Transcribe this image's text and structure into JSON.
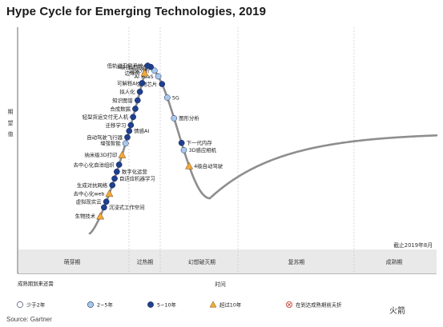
{
  "title": "Hype Cycle for Emerging Technologies, 2019",
  "source": "Source: Gartner",
  "watermark": "火箭",
  "as_of": "截止2019年8月",
  "colors": {
    "curve": "#8e8e8e",
    "less2": "#ffffff",
    "y2to5": "#a9c8ec",
    "y5to10": "#1f3f8f",
    "more10": "#f2a93b",
    "band": "#e9e9e9"
  },
  "chart_data": {
    "type": "scatter",
    "title": "Hype Cycle for Emerging Technologies, 2019",
    "xlabel": "时间",
    "ylabel": "期望值",
    "phases": [
      "萌芽期",
      "过热期",
      "幻想破灭期",
      "复苏期",
      "成熟期"
    ],
    "legend_title": "成熟期到来还需",
    "legend": [
      {
        "key": "less2",
        "label": "少于2年",
        "shape": "circle"
      },
      {
        "key": "y2to5",
        "label": "2~5年",
        "shape": "circle"
      },
      {
        "key": "y5to10",
        "label": "5~10年",
        "shape": "circle"
      },
      {
        "key": "more10",
        "label": "超过10年",
        "shape": "triangle"
      },
      {
        "key": "obsolete",
        "label": "在到达成熟期前夭折",
        "shape": "cross"
      }
    ],
    "points": [
      {
        "label": "生物芯片",
        "t": 0.48,
        "cat": "y5to10",
        "side": "left"
      },
      {
        "label": "AI PaaS",
        "t": 0.455,
        "cat": "y2to5",
        "side": "left"
      },
      {
        "label": "边缘分析",
        "t": 0.43,
        "cat": "y2to5",
        "side": "left"
      },
      {
        "label": "5G",
        "t": 0.515,
        "cat": "y2to5",
        "side": "right"
      },
      {
        "label": "S级自动驾驶",
        "t": 0.405,
        "cat": "y5to10",
        "side": "left"
      },
      {
        "label": "低轨道卫星系统",
        "t": 0.385,
        "cat": "y5to10",
        "side": "left"
      },
      {
        "label": "边缘AI",
        "t": 0.365,
        "cat": "more10",
        "side": "left"
      },
      {
        "label": "图形分析",
        "t": 0.56,
        "cat": "y2to5",
        "side": "right"
      },
      {
        "label": "可解释AI",
        "t": 0.348,
        "cat": "y5to10",
        "side": "left"
      },
      {
        "label": "拟人化",
        "t": 0.333,
        "cat": "y5to10",
        "side": "left"
      },
      {
        "label": "知识图谱",
        "t": 0.318,
        "cat": "y5to10",
        "side": "left"
      },
      {
        "label": "下一代内存",
        "t": 0.61,
        "cat": "y5to10",
        "side": "right"
      },
      {
        "label": "合成数据",
        "t": 0.303,
        "cat": "y5to10",
        "side": "left"
      },
      {
        "label": "3D感应相机",
        "t": 0.625,
        "cat": "y2to5",
        "side": "right"
      },
      {
        "label": "轻型货运交付无人机",
        "t": 0.288,
        "cat": "y5to10",
        "side": "left"
      },
      {
        "label": "迁移学习",
        "t": 0.273,
        "cat": "y5to10",
        "side": "left"
      },
      {
        "label": "情感AI",
        "t": 0.262,
        "cat": "y5to10",
        "side": "right"
      },
      {
        "label": "自动驾驶飞行器",
        "t": 0.25,
        "cat": "y5to10",
        "side": "left"
      },
      {
        "label": "4级自动驾驶",
        "t": 0.66,
        "cat": "more10",
        "side": "right"
      },
      {
        "label": "增强智能",
        "t": 0.238,
        "cat": "y2to5",
        "side": "left"
      },
      {
        "label": "纳米级3D打印",
        "t": 0.215,
        "cat": "more10",
        "side": "left"
      },
      {
        "label": "去中心化自治组织",
        "t": 0.195,
        "cat": "y5to10",
        "side": "left"
      },
      {
        "label": "数字化运营",
        "t": 0.18,
        "cat": "y5to10",
        "side": "right"
      },
      {
        "label": "自适应机器学习",
        "t": 0.165,
        "cat": "y5to10",
        "side": "right"
      },
      {
        "label": "生成对抗网络",
        "t": 0.15,
        "cat": "y5to10",
        "side": "left"
      },
      {
        "label": "去中心化web",
        "t": 0.13,
        "cat": "more10",
        "side": "left"
      },
      {
        "label": "虚拟现实云",
        "t": 0.11,
        "cat": "y5to10",
        "side": "left"
      },
      {
        "label": "沉浸式工作空间",
        "t": 0.095,
        "cat": "y5to10",
        "side": "right"
      },
      {
        "label": "生物技术",
        "t": 0.07,
        "cat": "more10",
        "side": "left"
      }
    ]
  }
}
